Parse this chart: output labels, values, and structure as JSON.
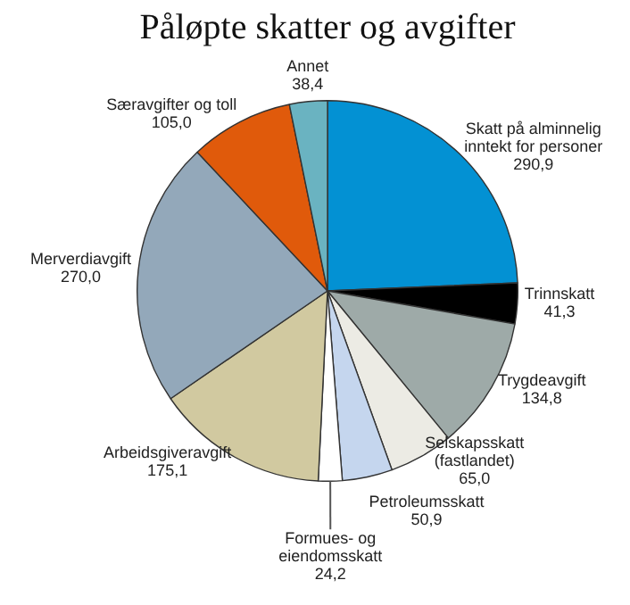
{
  "chart_data": {
    "type": "pie",
    "title": "Påløpte skatter og avgifter",
    "categories": [
      "Skatt på alminnelig inntekt for personer",
      "Trinnskatt",
      "Trygdeavgift",
      "Selskapsskatt (fastlandet)",
      "Petroleumsskatt",
      "Formues- og eiendomsskatt",
      "Arbeidsgiveravgift",
      "Merverdiavgift",
      "Særavgifter og toll",
      "Annet"
    ],
    "values": [
      290.9,
      41.3,
      134.8,
      65.0,
      50.9,
      24.2,
      175.1,
      270.0,
      105.0,
      38.4
    ],
    "value_labels": [
      "290,9",
      "41,3",
      "134,8",
      "65,0",
      "50,9",
      "24,2",
      "175,1",
      "270,0",
      "105,0",
      "38,4"
    ],
    "colors": [
      "#0391d3",
      "#000000",
      "#9eaaa8",
      "#ecebe4",
      "#c5d6ee",
      "#ffffff",
      "#d1c9a0",
      "#93a8ba",
      "#e05a0b",
      "#6ab3c1"
    ]
  }
}
